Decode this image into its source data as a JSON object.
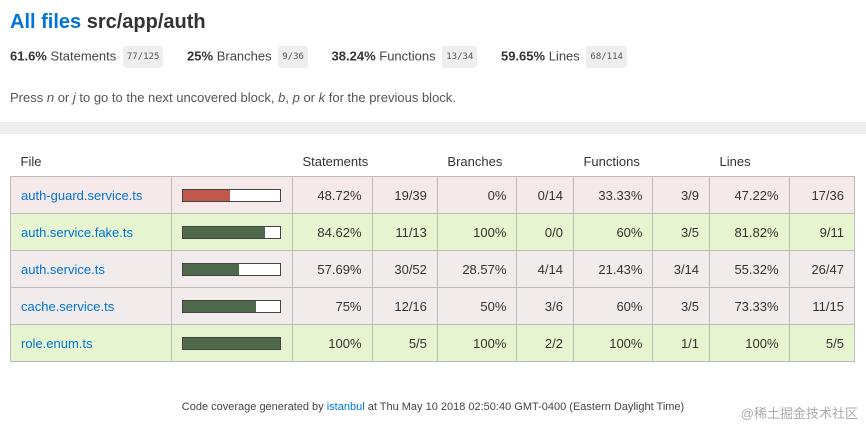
{
  "header": {
    "all_files": "All files",
    "path": "src/app/auth"
  },
  "summary": [
    {
      "pct": "61.6%",
      "label": "Statements",
      "fraction": "77/125"
    },
    {
      "pct": "25%",
      "label": "Branches",
      "fraction": "9/36"
    },
    {
      "pct": "38.24%",
      "label": "Functions",
      "fraction": "13/34"
    },
    {
      "pct": "59.65%",
      "label": "Lines",
      "fraction": "68/114"
    }
  ],
  "hint": {
    "p1": "Press ",
    "k1": "n",
    "p2": " or ",
    "k2": "j",
    "p3": " to go to the next uncovered block, ",
    "k3": "b",
    "p4": ", ",
    "k4": "p",
    "p5": " or ",
    "k5": "k",
    "p6": " for the previous block."
  },
  "table": {
    "headers": {
      "file": "File",
      "statements": "Statements",
      "branches": "Branches",
      "functions": "Functions",
      "lines": "Lines"
    },
    "rows": [
      {
        "file": "auth-guard.service.ts",
        "coverage": 48.72,
        "bar_color": "#C0594A",
        "st_pct": "48.72%",
        "st_frac": "19/39",
        "br_pct": "0%",
        "br_frac": "0/14",
        "fn_pct": "33.33%",
        "fn_frac": "3/9",
        "ln_pct": "47.22%",
        "ln_frac": "17/36"
      },
      {
        "file": "auth.service.fake.ts",
        "coverage": 84.62,
        "bar_color": "#4D6A4A",
        "st_pct": "84.62%",
        "st_frac": "11/13",
        "br_pct": "100%",
        "br_frac": "0/0",
        "fn_pct": "60%",
        "fn_frac": "3/5",
        "ln_pct": "81.82%",
        "ln_frac": "9/11"
      },
      {
        "file": "auth.service.ts",
        "coverage": 57.69,
        "bar_color": "#4D6A4A",
        "st_pct": "57.69%",
        "st_frac": "30/52",
        "br_pct": "28.57%",
        "br_frac": "4/14",
        "fn_pct": "21.43%",
        "fn_frac": "3/14",
        "ln_pct": "55.32%",
        "ln_frac": "26/47"
      },
      {
        "file": "cache.service.ts",
        "coverage": 75,
        "bar_color": "#4D6A4A",
        "st_pct": "75%",
        "st_frac": "12/16",
        "br_pct": "50%",
        "br_frac": "3/6",
        "fn_pct": "60%",
        "fn_frac": "3/5",
        "ln_pct": "73.33%",
        "ln_frac": "11/15"
      },
      {
        "file": "role.enum.ts",
        "coverage": 100,
        "bar_color": "#4D6A4A",
        "st_pct": "100%",
        "st_frac": "5/5",
        "br_pct": "100%",
        "br_frac": "2/2",
        "fn_pct": "100%",
        "fn_frac": "1/1",
        "ln_pct": "100%",
        "ln_frac": "5/5"
      }
    ]
  },
  "footer": {
    "prefix": "Code coverage generated by ",
    "tool": "istanbul",
    "suffix": " at Thu May 10 2018 02:50:40 GMT-0400 (Eastern Daylight Time)"
  },
  "watermark": "@稀土掘金技术社区"
}
